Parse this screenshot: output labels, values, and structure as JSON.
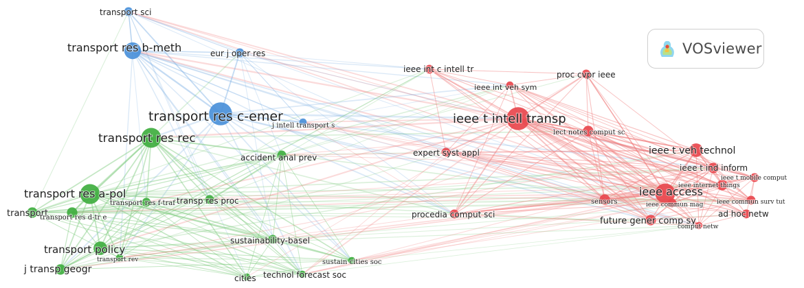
{
  "brand": {
    "name": "VOSviewer"
  },
  "colors": {
    "blue": "#4a90d9",
    "green": "#3fae3f",
    "red": "#e8464d"
  },
  "clusters": [
    {
      "id": "blue"
    },
    {
      "id": "green"
    },
    {
      "id": "red"
    }
  ],
  "nodes": [
    {
      "id": "n1",
      "label": "transport sci",
      "cluster": "blue",
      "weight": 1.5
    },
    {
      "id": "n2",
      "label": "transport res b-meth",
      "cluster": "blue",
      "weight": 4
    },
    {
      "id": "n3",
      "label": "eur j oper res",
      "cluster": "blue",
      "weight": 1.5
    },
    {
      "id": "n4",
      "label": "transport res c-emer",
      "cluster": "blue",
      "weight": 6
    },
    {
      "id": "n5",
      "label": "j intell transport s",
      "cluster": "blue",
      "weight": 1
    },
    {
      "id": "n6",
      "label": "transport res rec",
      "cluster": "green",
      "weight": 5
    },
    {
      "id": "n7",
      "label": "accident anal prev",
      "cluster": "green",
      "weight": 1.5
    },
    {
      "id": "n8",
      "label": "transport res a-pol",
      "cluster": "green",
      "weight": 5
    },
    {
      "id": "n9",
      "label": "transport res f-traf",
      "cluster": "green",
      "weight": 1.5
    },
    {
      "id": "n10",
      "label": "transp res proc",
      "cluster": "green",
      "weight": 1.5
    },
    {
      "id": "n11",
      "label": "transport",
      "cluster": "green",
      "weight": 2
    },
    {
      "id": "n12",
      "label": "transport res d-tr e",
      "cluster": "green",
      "weight": 2
    },
    {
      "id": "n13",
      "label": "transport policy",
      "cluster": "green",
      "weight": 3
    },
    {
      "id": "n14",
      "label": "transport rev",
      "cluster": "green",
      "weight": 1
    },
    {
      "id": "n15",
      "label": "j transp geogr",
      "cluster": "green",
      "weight": 2
    },
    {
      "id": "n16",
      "label": "sustainability-basel",
      "cluster": "green",
      "weight": 1.5
    },
    {
      "id": "n17",
      "label": "sustain cities soc",
      "cluster": "green",
      "weight": 1
    },
    {
      "id": "n18",
      "label": "cities",
      "cluster": "green",
      "weight": 1
    },
    {
      "id": "n19",
      "label": "technol forecast soc",
      "cluster": "green",
      "weight": 1
    },
    {
      "id": "n20",
      "label": "ieee int c intell tr",
      "cluster": "red",
      "weight": 1.5
    },
    {
      "id": "n21",
      "label": "proc cvpr ieee",
      "cluster": "red",
      "weight": 1.5
    },
    {
      "id": "n22",
      "label": "ieee int veh sym",
      "cluster": "red",
      "weight": 1
    },
    {
      "id": "n23",
      "label": "ieee t intell transp",
      "cluster": "red",
      "weight": 6
    },
    {
      "id": "n24",
      "label": "lect notes comput sc",
      "cluster": "red",
      "weight": 2
    },
    {
      "id": "n25",
      "label": "expert syst appl",
      "cluster": "red",
      "weight": 1.5
    },
    {
      "id": "n26",
      "label": "ieee t veh technol",
      "cluster": "red",
      "weight": 3
    },
    {
      "id": "n27",
      "label": "ieee t ind inform",
      "cluster": "red",
      "weight": 2
    },
    {
      "id": "n28",
      "label": "ieee t mobile comput",
      "cluster": "red",
      "weight": 1.5
    },
    {
      "id": "n29",
      "label": "ieee internet things",
      "cluster": "red",
      "weight": 2
    },
    {
      "id": "n30",
      "label": "ieee access",
      "cluster": "red",
      "weight": 5
    },
    {
      "id": "n31",
      "label": "sensors",
      "cluster": "red",
      "weight": 2
    },
    {
      "id": "n32",
      "label": "ieee commun mag",
      "cluster": "red",
      "weight": 1.5
    },
    {
      "id": "n33",
      "label": "ieee commun surv tut",
      "cluster": "red",
      "weight": 1.5
    },
    {
      "id": "n34",
      "label": "ad hoc netw",
      "cluster": "red",
      "weight": 1.5
    },
    {
      "id": "n35",
      "label": "procedia comput sci",
      "cluster": "red",
      "weight": 1.5
    },
    {
      "id": "n36",
      "label": "future gener comp sy",
      "cluster": "red",
      "weight": 2
    },
    {
      "id": "n37",
      "label": "comput netw",
      "cluster": "red",
      "weight": 1
    }
  ]
}
